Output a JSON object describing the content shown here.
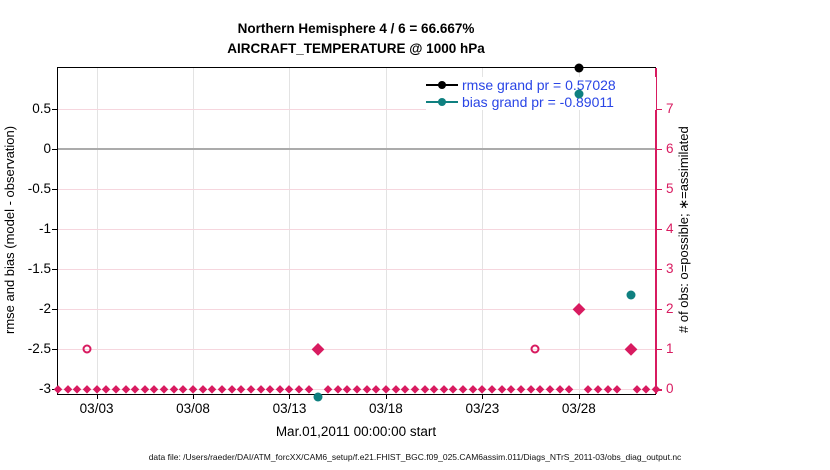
{
  "figure": {
    "title_line1": "Northern Hemisphere 4 / 6 = 66.667%",
    "title_line2": "AIRCRAFT_TEMPERATURE @ 1000 hPa",
    "xlabel": "Mar.01,2011 00:00:00 start",
    "ylabel_left": "rmse and bias (model - observation)",
    "ylabel_right": "# of obs: o=possible; ∗=assimilated",
    "footer": "data file: /Users/raeder/DAI/ATM_forcXX/CAM6_setup/f.e21.FHIST_BGC.f09_025.CAM6assim.011/Diags_NTrS_2011-03/obs_diag_output.nc"
  },
  "legend": [
    {
      "label": "rmse grand pr = 0.57028",
      "color": "#000000"
    },
    {
      "label": "bias grand pr = -0.89011",
      "color": "#0f8080"
    }
  ],
  "colors": {
    "obs_count": "#d81b60",
    "bias": "#0f8080",
    "rmse": "#000000",
    "legend_text": "#2945e6",
    "grid_h": "#f6d6de",
    "grid_v": "#e3e3e3",
    "zero_line": "#ababab",
    "right_axis": "#d81b60"
  },
  "chart_data": {
    "type": "scatter",
    "title": "Northern Hemisphere 4 / 6 = 66.667% — AIRCRAFT_TEMPERATURE @ 1000 hPa",
    "xlabel": "Mar.01,2011 00:00:00 start",
    "x_tick_labels": [
      "03/03",
      "03/08",
      "03/13",
      "03/18",
      "03/23",
      "03/28"
    ],
    "x_tick_days": [
      3,
      8,
      13,
      18,
      23,
      28
    ],
    "x_range_days_of_march": [
      1,
      32
    ],
    "grid": "on",
    "legend_position": "top-right-inside",
    "left_axis": {
      "label": "rmse and bias (model - observation)",
      "tick_labels": [
        "0.5",
        "0",
        "-0.5",
        "-1",
        "-1.5",
        "-2",
        "-2.5",
        "-3"
      ],
      "tick_values": [
        0.5,
        0,
        -0.5,
        -1,
        -1.5,
        -2,
        -2.5,
        -3
      ],
      "approx_lim": [
        -3.06,
        1.01
      ]
    },
    "right_axis": {
      "label": "# of obs: o=possible; ∗=assimilated",
      "tick_labels": [
        "7",
        "6",
        "5",
        "4",
        "3",
        "2",
        "1",
        "0"
      ],
      "tick_values": [
        7,
        6,
        5,
        4,
        3,
        2,
        1,
        0
      ],
      "approx_lim": [
        -0.12,
        8.03
      ]
    },
    "series": [
      {
        "name": "rmse",
        "axis": "left",
        "marker": "filled-circle",
        "color": "#000000",
        "grand_value": 0.57028,
        "points": [
          {
            "day": 28.0,
            "value": 1.01,
            "note": "clipped at top edge of axes"
          }
        ]
      },
      {
        "name": "bias",
        "axis": "left",
        "marker": "filled-circle",
        "color": "#0f8080",
        "grand_value": -0.89011,
        "points": [
          {
            "day": 14.5,
            "value": -3.1,
            "note": "clipped below bottom axis"
          },
          {
            "day": 28.0,
            "value": 0.69
          },
          {
            "day": 30.7,
            "value": -1.83
          }
        ]
      },
      {
        "name": "possible obs (o)",
        "axis": "right",
        "marker": "open-circle",
        "color": "#d81b60",
        "nonzero_points": [
          {
            "day": 2.5,
            "count": 1
          },
          {
            "day": 25.75,
            "count": 1
          }
        ],
        "note": "all other 12-hourly times have count 0"
      },
      {
        "name": "assimilated obs (*)",
        "axis": "right",
        "marker": "asterisk-diamond",
        "color": "#d81b60",
        "nonzero_points": [
          {
            "day": 14.5,
            "count": 1
          },
          {
            "day": 28.0,
            "count": 2
          },
          {
            "day": 30.7,
            "count": 1
          }
        ],
        "note": "all other 12-hourly times have count 0"
      }
    ],
    "zero_count_row": {
      "start_day": 1.0,
      "end_day": 32.0,
      "step_days": 0.5,
      "value": 0,
      "gap_days": [
        14.5,
        28.0,
        30.5
      ]
    }
  }
}
